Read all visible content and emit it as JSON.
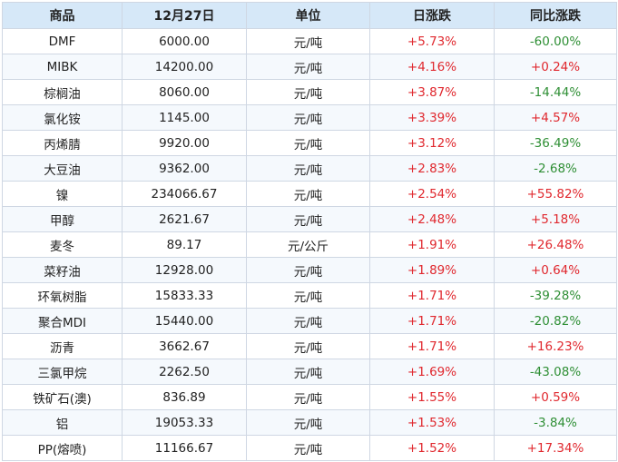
{
  "colors": {
    "header_bg": "#d6e8f8",
    "border": "#cfd7e3",
    "up": "#e0282e",
    "down": "#2f8f35",
    "text": "#222222"
  },
  "table": {
    "headers": [
      "商品",
      "12月27日",
      "单位",
      "日涨跌",
      "同比涨跌"
    ],
    "rows": [
      {
        "name": "DMF",
        "price": "6000.00",
        "unit": "元/吨",
        "daily": "+5.73%",
        "daily_dir": "up",
        "yoy": "-60.00%",
        "yoy_dir": "down"
      },
      {
        "name": "MIBK",
        "price": "14200.00",
        "unit": "元/吨",
        "daily": "+4.16%",
        "daily_dir": "up",
        "yoy": "+0.24%",
        "yoy_dir": "up"
      },
      {
        "name": "棕榈油",
        "price": "8060.00",
        "unit": "元/吨",
        "daily": "+3.87%",
        "daily_dir": "up",
        "yoy": "-14.44%",
        "yoy_dir": "down"
      },
      {
        "name": "氯化铵",
        "price": "1145.00",
        "unit": "元/吨",
        "daily": "+3.39%",
        "daily_dir": "up",
        "yoy": "+4.57%",
        "yoy_dir": "up"
      },
      {
        "name": "丙烯腈",
        "price": "9920.00",
        "unit": "元/吨",
        "daily": "+3.12%",
        "daily_dir": "up",
        "yoy": "-36.49%",
        "yoy_dir": "down"
      },
      {
        "name": "大豆油",
        "price": "9362.00",
        "unit": "元/吨",
        "daily": "+2.83%",
        "daily_dir": "up",
        "yoy": "-2.68%",
        "yoy_dir": "down"
      },
      {
        "name": "镍",
        "price": "234066.67",
        "unit": "元/吨",
        "daily": "+2.54%",
        "daily_dir": "up",
        "yoy": "+55.82%",
        "yoy_dir": "up"
      },
      {
        "name": "甲醇",
        "price": "2621.67",
        "unit": "元/吨",
        "daily": "+2.48%",
        "daily_dir": "up",
        "yoy": "+5.18%",
        "yoy_dir": "up"
      },
      {
        "name": "麦冬",
        "price": "89.17",
        "unit": "元/公斤",
        "daily": "+1.91%",
        "daily_dir": "up",
        "yoy": "+26.48%",
        "yoy_dir": "up"
      },
      {
        "name": "菜籽油",
        "price": "12928.00",
        "unit": "元/吨",
        "daily": "+1.89%",
        "daily_dir": "up",
        "yoy": "+0.64%",
        "yoy_dir": "up"
      },
      {
        "name": "环氧树脂",
        "price": "15833.33",
        "unit": "元/吨",
        "daily": "+1.71%",
        "daily_dir": "up",
        "yoy": "-39.28%",
        "yoy_dir": "down"
      },
      {
        "name": "聚合MDI",
        "price": "15440.00",
        "unit": "元/吨",
        "daily": "+1.71%",
        "daily_dir": "up",
        "yoy": "-20.82%",
        "yoy_dir": "down"
      },
      {
        "name": "沥青",
        "price": "3662.67",
        "unit": "元/吨",
        "daily": "+1.71%",
        "daily_dir": "up",
        "yoy": "+16.23%",
        "yoy_dir": "up"
      },
      {
        "name": "三氯甲烷",
        "price": "2262.50",
        "unit": "元/吨",
        "daily": "+1.69%",
        "daily_dir": "up",
        "yoy": "-43.08%",
        "yoy_dir": "down"
      },
      {
        "name": "铁矿石(澳)",
        "price": "836.89",
        "unit": "元/吨",
        "daily": "+1.55%",
        "daily_dir": "up",
        "yoy": "+0.59%",
        "yoy_dir": "up"
      },
      {
        "name": "铝",
        "price": "19053.33",
        "unit": "元/吨",
        "daily": "+1.53%",
        "daily_dir": "up",
        "yoy": "-3.84%",
        "yoy_dir": "down"
      },
      {
        "name": "PP(熔喷)",
        "price": "11166.67",
        "unit": "元/吨",
        "daily": "+1.52%",
        "daily_dir": "up",
        "yoy": "+17.34%",
        "yoy_dir": "up"
      }
    ]
  }
}
